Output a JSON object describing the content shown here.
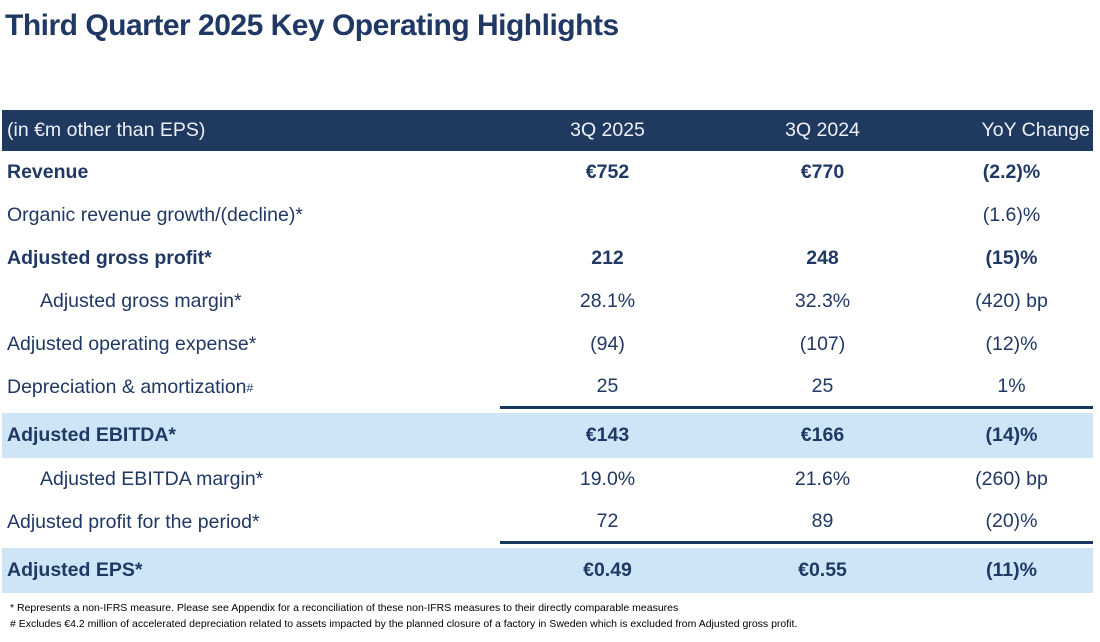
{
  "title": "Third Quarter 2025 Key Operating Highlights",
  "colors": {
    "title_navy": "#1F3864",
    "header_bg": "#20395F",
    "header_text": "#EDF1F7",
    "body_text": "#1F3864",
    "highlight_row_blue": "#CDE5F7",
    "rule_line": "#17375E"
  },
  "table": {
    "header": {
      "label_col": "(in €m other than EPS)",
      "col_2025": "3Q 2025",
      "col_2024": "3Q 2024",
      "col_yoy": "YoY Change"
    },
    "rows": [
      {
        "label": "Revenue",
        "label_sup": "",
        "v2025": "€752",
        "v2024": "€770",
        "yoy": "(2.2)%"
      },
      {
        "label": "Organic revenue growth/(decline)*",
        "label_sup": "",
        "v2025": "",
        "v2024": "",
        "yoy": "(1.6)%"
      },
      {
        "label": "Adjusted gross profit*",
        "label_sup": "",
        "v2025": "212",
        "v2024": "248",
        "yoy": "(15)%"
      },
      {
        "label": "Adjusted gross margin*",
        "label_sup": "",
        "v2025": "28.1%",
        "v2024": "32.3%",
        "yoy": "(420) bp"
      },
      {
        "label": "Adjusted operating expense*",
        "label_sup": "",
        "v2025": "(94)",
        "v2024": "(107)",
        "yoy": "(12)%"
      },
      {
        "label": "Depreciation & amortization",
        "label_sup": "#",
        "v2025": "25",
        "v2024": "25",
        "yoy": "1%"
      },
      {
        "label": "Adjusted EBITDA*",
        "label_sup": "",
        "v2025": "€143",
        "v2024": "€166",
        "yoy": "(14)%"
      },
      {
        "label": "Adjusted EBITDA margin*",
        "label_sup": "",
        "v2025": "19.0%",
        "v2024": "21.6%",
        "yoy": "(260) bp"
      },
      {
        "label": "Adjusted profit for the period*",
        "label_sup": "",
        "v2025": "72",
        "v2024": "89",
        "yoy": "(20)%"
      },
      {
        "label": "Adjusted EPS*",
        "label_sup": "",
        "v2025": "€0.49",
        "v2024": "€0.55",
        "yoy": "(11)%"
      }
    ]
  },
  "footnotes": [
    "* Represents a non-IFRS measure. Please see Appendix for a reconciliation of these non-IFRS measures to their directly comparable measures",
    "# Excludes €4.2 million of accelerated depreciation related to assets impacted by the planned closure of a factory in Sweden which is excluded from Adjusted gross profit."
  ]
}
